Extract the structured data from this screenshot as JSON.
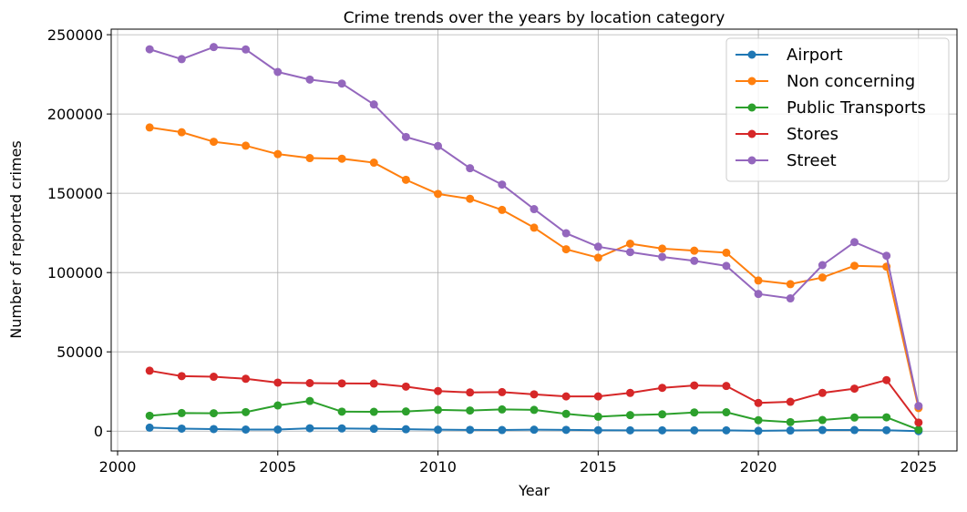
{
  "chart_data": {
    "type": "line",
    "title": "Crime trends over the years by location category",
    "xlabel": "Year",
    "ylabel": "Number of reported crimes",
    "xlim": [
      1999.8,
      2026.2
    ],
    "ylim": [
      -12500,
      253500
    ],
    "xticks": [
      2000,
      2005,
      2010,
      2015,
      2020,
      2025
    ],
    "yticks": [
      0,
      50000,
      100000,
      150000,
      200000,
      250000
    ],
    "grid": true,
    "legend_position": "top-right",
    "x": [
      2001,
      2002,
      2003,
      2004,
      2005,
      2006,
      2007,
      2008,
      2009,
      2010,
      2011,
      2012,
      2013,
      2014,
      2015,
      2016,
      2017,
      2018,
      2019,
      2020,
      2021,
      2022,
      2023,
      2024,
      2025
    ],
    "series": [
      {
        "name": "Airport",
        "color": "#1f77b4",
        "values": [
          2200,
          1600,
          1300,
          1000,
          1000,
          1800,
          1700,
          1500,
          1200,
          900,
          800,
          700,
          900,
          800,
          600,
          500,
          500,
          500,
          500,
          200,
          400,
          700,
          700,
          600,
          0
        ]
      },
      {
        "name": "Non concerning",
        "color": "#ff7f0e",
        "values": [
          191500,
          188500,
          182500,
          180000,
          174700,
          172200,
          171800,
          169300,
          158500,
          149600,
          146500,
          139500,
          128300,
          114700,
          109400,
          118200,
          115100,
          113800,
          112500,
          95000,
          92700,
          96900,
          104300,
          103700,
          14500
        ]
      },
      {
        "name": "Public Transports",
        "color": "#2ca02c",
        "values": [
          9700,
          11400,
          11300,
          12000,
          16200,
          19000,
          12300,
          12200,
          12400,
          13400,
          13000,
          13700,
          13400,
          10900,
          9100,
          10100,
          10600,
          11800,
          11900,
          6900,
          5700,
          7000,
          8600,
          8700,
          900
        ]
      },
      {
        "name": "Stores",
        "color": "#d62728",
        "values": [
          38100,
          34700,
          34300,
          33000,
          30600,
          30300,
          30100,
          30000,
          28100,
          25300,
          24400,
          24600,
          23200,
          21900,
          21900,
          24100,
          27300,
          28800,
          28500,
          17800,
          18500,
          24100,
          26800,
          32200,
          5400
        ]
      },
      {
        "name": "Street",
        "color": "#9467bd",
        "values": [
          240800,
          234600,
          242200,
          240700,
          226500,
          221700,
          219200,
          206000,
          185500,
          179800,
          165800,
          155500,
          140000,
          124800,
          116300,
          112900,
          109900,
          107400,
          104200,
          86500,
          83700,
          104700,
          119200,
          110600,
          15900
        ]
      }
    ]
  }
}
